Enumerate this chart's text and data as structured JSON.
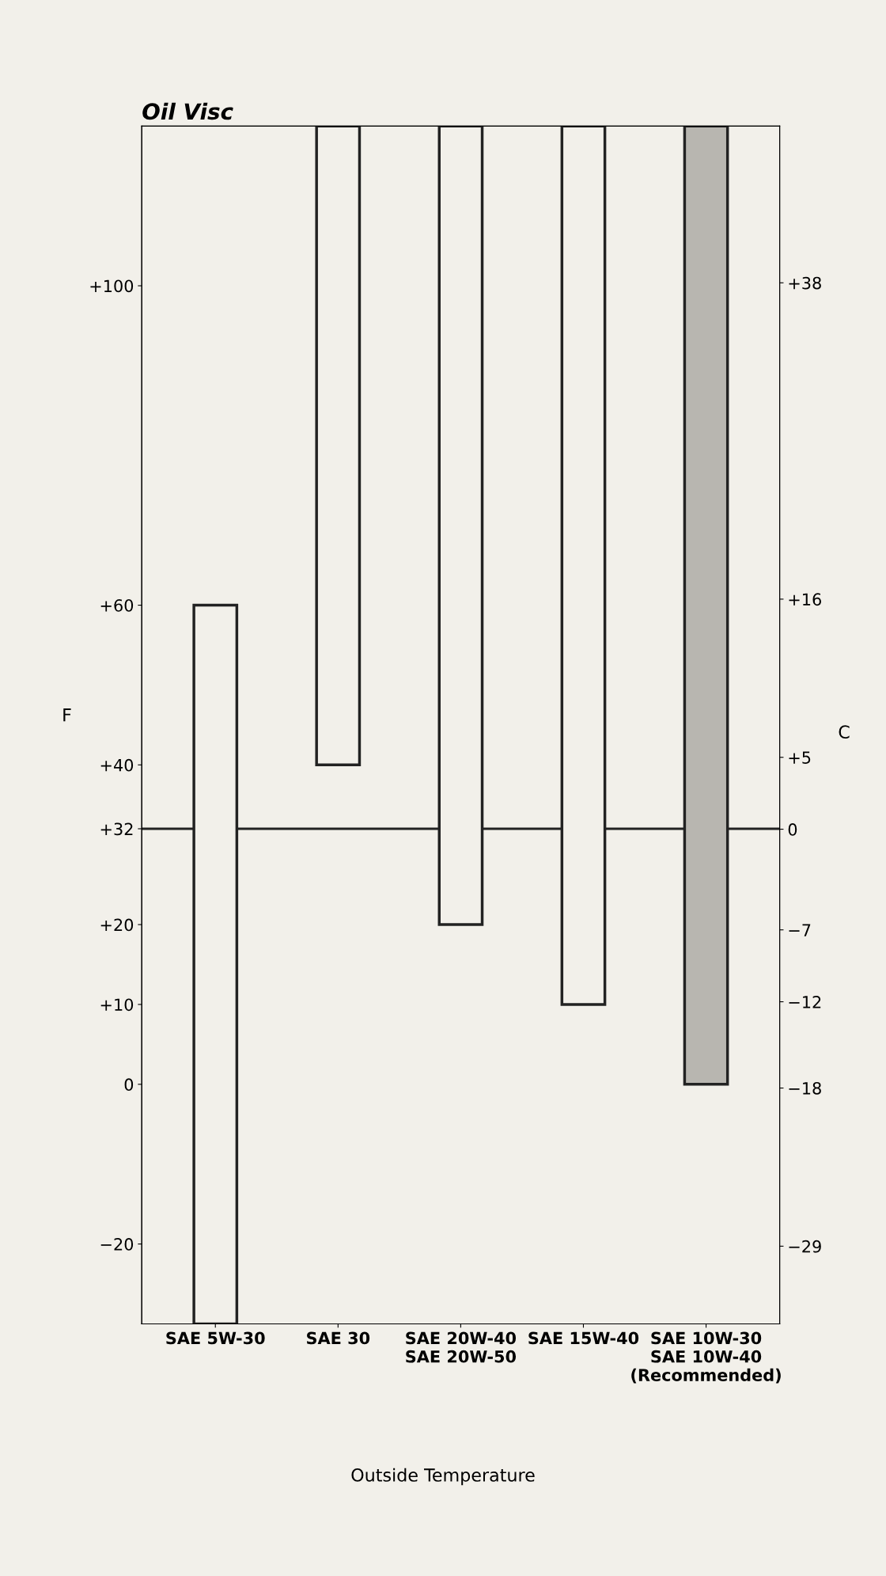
{
  "chart_data": {
    "type": "bar",
    "title": "Oil Visc",
    "categories": [
      "SAE 5W-30",
      "SAE 30",
      "SAE 20W-40\nSAE 20W-50",
      "SAE 15W-40",
      "SAE 10W-30\nSAE 10W-40\n(Recommended)"
    ],
    "base": [
      -30,
      40,
      20,
      10,
      0
    ],
    "values": [
      90,
      80,
      100,
      110,
      120
    ],
    "colors": [
      "#f2f0ea",
      "#f2f0ea",
      "#f2f0ea",
      "#f2f0ea",
      "#b8b6b0"
    ],
    "ylabel": "F",
    "y2label": "C",
    "ylim": [
      -30,
      120
    ],
    "yticks": [
      {
        "value": -20,
        "label": "−20"
      },
      0,
      {
        "value": 10,
        "label": "+10"
      },
      {
        "value": 20,
        "label": "+20"
      },
      {
        "value": 32,
        "label": "+32"
      },
      {
        "value": 40,
        "label": "+40"
      },
      {
        "value": 60,
        "label": "+60"
      },
      {
        "value": 100,
        "label": "+100"
      }
    ],
    "y2lim": [
      -34.4,
      48.9
    ],
    "y2ticks": [
      {
        "value": -29,
        "label": "−29"
      },
      {
        "value": -18,
        "label": "−18"
      },
      {
        "value": -12,
        "label": "−12"
      },
      {
        "value": -7,
        "label": "−7"
      },
      0,
      {
        "value": 5,
        "label": "+5"
      },
      {
        "value": 16,
        "label": "+16"
      },
      {
        "value": 38,
        "label": "+38"
      }
    ],
    "ref_lines": [
      {
        "axis": "y",
        "value": 32,
        "label": null,
        "color": "#222222",
        "line_style": "solid"
      }
    ],
    "annotations": [
      "Outside Temperature"
    ],
    "grid": false,
    "legend": false
  }
}
